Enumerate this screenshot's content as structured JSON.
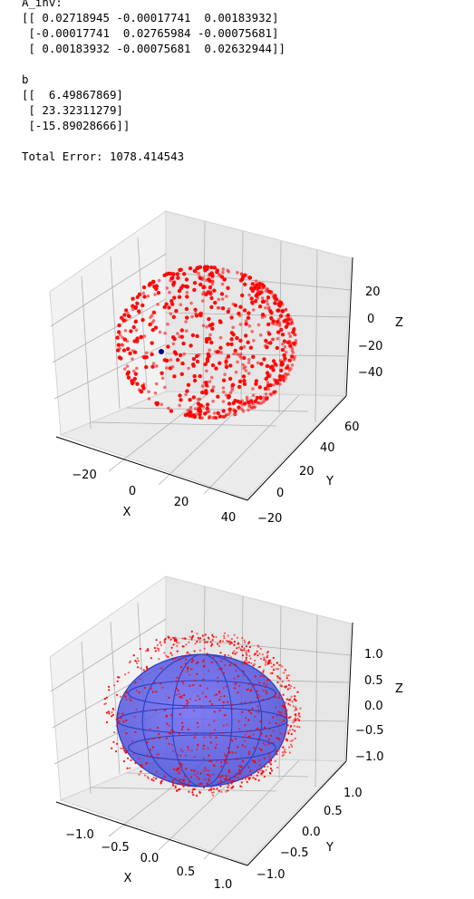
{
  "text_output": {
    "ainv_label": "A_inv:",
    "ainv_rows": [
      "[[ 0.02718945 -0.00017741  0.00183932]",
      " [-0.00017741  0.02765984 -0.00075681]",
      " [ 0.00183932 -0.00075681  0.02632944]]"
    ],
    "b_label": "b",
    "b_rows": [
      "[[  6.49867869]",
      " [ 23.32311279]",
      " [-15.89028666]]"
    ],
    "error_line": "Total Error: 1078.414543"
  },
  "chart_data": [
    {
      "type": "scatter",
      "projection": "3d",
      "title": "",
      "xlabel": "X",
      "ylabel": "Y",
      "zlabel": "Z",
      "xticks": [
        "−20",
        "0",
        "20",
        "40"
      ],
      "yticks": [
        "−20",
        "0",
        "20",
        "40",
        "60"
      ],
      "zticks": [
        "20",
        "0",
        "−20",
        "−40"
      ],
      "xlim": [
        -35,
        50
      ],
      "ylim": [
        -25,
        70
      ],
      "zlim": [
        -55,
        35
      ],
      "grid": true,
      "series": [
        {
          "marker_color": "#ff0000",
          "description_points": "raw magnetometer samples on an offset ellipsoid, center near (6.5, 23.3, -15.9)"
        },
        {
          "marker_color": "#00008b",
          "points": [
            [
              6.5,
              23.3,
              -15.9
            ]
          ]
        }
      ]
    },
    {
      "type": "scatter",
      "projection": "3d",
      "title": "",
      "xlabel": "X",
      "ylabel": "Y",
      "zlabel": "Z",
      "xticks": [
        "−1.0",
        "−0.5",
        "0.0",
        "0.5",
        "1.0"
      ],
      "yticks": [
        "−1.0",
        "−0.5",
        "0.0",
        "0.5",
        "1.0"
      ],
      "zticks": [
        "1.0",
        "0.5",
        "0.0",
        "−0.5",
        "−1.0"
      ],
      "xlim": [
        -1.3,
        1.3
      ],
      "ylim": [
        -1.3,
        1.3
      ],
      "zlim": [
        -1.4,
        1.4
      ],
      "grid": true,
      "series": [
        {
          "marker_color": "#ff0000"
        },
        {
          "surface_color": "#0000ff",
          "surface": "unit sphere"
        }
      ]
    }
  ]
}
